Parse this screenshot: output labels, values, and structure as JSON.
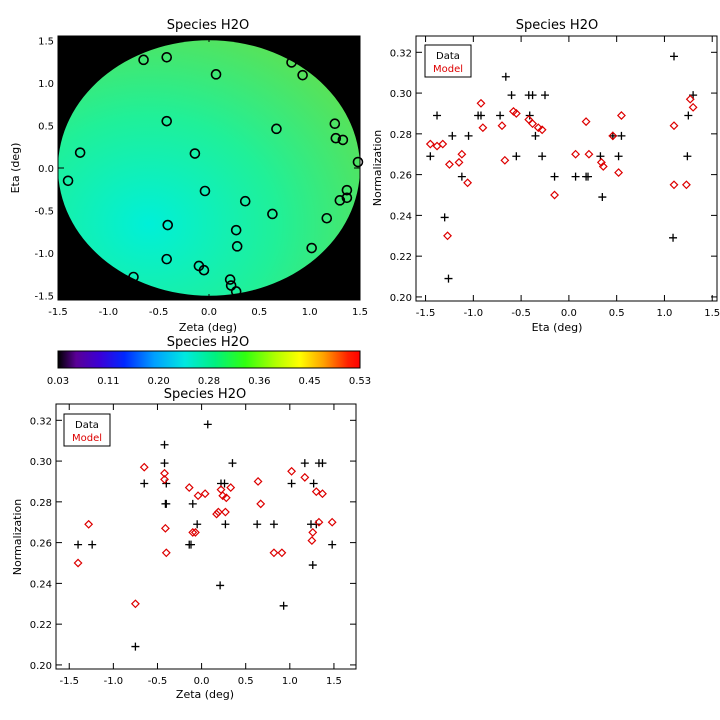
{
  "colors": {
    "background": "#ffffff",
    "outside_field": "#000000",
    "data_marker": "#000000",
    "model_marker": "#dd0000",
    "model_legend_text": "#dd0000"
  },
  "colorbar": {
    "title": "Species H2O",
    "min": 0.03,
    "max": 0.53,
    "ticks": [
      "0.03",
      "0.11",
      "0.20",
      "0.28",
      "0.36",
      "0.45",
      "0.53"
    ],
    "colormap": "rainbow"
  },
  "chart_data": [
    {
      "id": "map",
      "type": "heatmap",
      "title": "Species H2O",
      "xlabel": "Zeta (deg)",
      "ylabel": "Eta (deg)",
      "xlim": [
        -1.5,
        1.5
      ],
      "ylim": [
        -1.55,
        1.55
      ],
      "xticks": [
        "-1.5",
        "-1.0",
        "-0.5",
        "0.0",
        "0.5",
        "1.0",
        "1.5"
      ],
      "xtick_values": [
        -1.5,
        -1.0,
        -0.5,
        0.0,
        0.5,
        1.0,
        1.5
      ],
      "yticks": [
        "-1.5",
        "-1.0",
        "-0.5",
        "0.0",
        "0.5",
        "1.0",
        "1.5"
      ],
      "ytick_values": [
        -1.5,
        -1.0,
        -0.5,
        0.0,
        0.5,
        1.0,
        1.5
      ],
      "field_radius_deg": 1.5,
      "field_value_range": [
        0.26,
        0.3
      ],
      "points": [
        {
          "x": -1.4,
          "y": -0.15
        },
        {
          "x": -1.28,
          "y": 0.18
        },
        {
          "x": -0.65,
          "y": 1.27
        },
        {
          "x": -0.42,
          "y": 1.3
        },
        {
          "x": 0.07,
          "y": 1.1
        },
        {
          "x": 0.82,
          "y": 1.24
        },
        {
          "x": 0.93,
          "y": 1.09
        },
        {
          "x": -0.42,
          "y": 0.55
        },
        {
          "x": 0.67,
          "y": 0.46
        },
        {
          "x": 1.25,
          "y": 0.52
        },
        {
          "x": 1.26,
          "y": 0.35
        },
        {
          "x": 1.33,
          "y": 0.33
        },
        {
          "x": 1.48,
          "y": 0.07
        },
        {
          "x": -0.14,
          "y": 0.17
        },
        {
          "x": -0.04,
          "y": -0.27
        },
        {
          "x": 0.36,
          "y": -0.39
        },
        {
          "x": 1.37,
          "y": -0.26
        },
        {
          "x": 1.3,
          "y": -0.38
        },
        {
          "x": 1.37,
          "y": -0.35
        },
        {
          "x": 0.63,
          "y": -0.54
        },
        {
          "x": 1.17,
          "y": -0.59
        },
        {
          "x": -0.41,
          "y": -0.67
        },
        {
          "x": 0.27,
          "y": -0.73
        },
        {
          "x": 0.28,
          "y": -0.92
        },
        {
          "x": 1.02,
          "y": -0.94
        },
        {
          "x": -0.42,
          "y": -1.07
        },
        {
          "x": -0.1,
          "y": -1.15
        },
        {
          "x": -0.05,
          "y": -1.2
        },
        {
          "x": 0.21,
          "y": -1.31
        },
        {
          "x": 0.22,
          "y": -1.38
        },
        {
          "x": -0.75,
          "y": -1.28
        },
        {
          "x": 0.27,
          "y": -1.45
        }
      ]
    },
    {
      "id": "eta",
      "type": "scatter",
      "title": "Species H2O",
      "xlabel": "Eta (deg)",
      "ylabel": "Normalization",
      "xlim": [
        -1.6,
        1.55
      ],
      "ylim": [
        0.198,
        0.328
      ],
      "xticks": [
        "-1.5",
        "-1.0",
        "-0.5",
        "0.0",
        "0.5",
        "1.0",
        "1.5"
      ],
      "xtick_values": [
        -1.5,
        -1.0,
        -0.5,
        0.0,
        0.5,
        1.0,
        1.5
      ],
      "yticks": [
        "0.20",
        "0.22",
        "0.24",
        "0.26",
        "0.28",
        "0.30",
        "0.32"
      ],
      "ytick_values": [
        0.2,
        0.22,
        0.24,
        0.26,
        0.28,
        0.3,
        0.32
      ],
      "legend": {
        "position": "top-left",
        "entries": [
          "Data",
          "Model"
        ]
      },
      "series": [
        {
          "name": "Data",
          "marker": "plus",
          "points": [
            {
              "x": -1.45,
              "y": 0.269
            },
            {
              "x": -1.38,
              "y": 0.289
            },
            {
              "x": -1.3,
              "y": 0.239
            },
            {
              "x": -1.26,
              "y": 0.209
            },
            {
              "x": -1.22,
              "y": 0.279
            },
            {
              "x": -1.12,
              "y": 0.259
            },
            {
              "x": -1.05,
              "y": 0.279
            },
            {
              "x": -0.95,
              "y": 0.289
            },
            {
              "x": -0.92,
              "y": 0.289
            },
            {
              "x": -0.72,
              "y": 0.289
            },
            {
              "x": -0.66,
              "y": 0.308
            },
            {
              "x": -0.6,
              "y": 0.299
            },
            {
              "x": -0.55,
              "y": 0.269
            },
            {
              "x": -0.42,
              "y": 0.299
            },
            {
              "x": -0.41,
              "y": 0.289
            },
            {
              "x": -0.38,
              "y": 0.299
            },
            {
              "x": -0.35,
              "y": 0.279
            },
            {
              "x": -0.28,
              "y": 0.269
            },
            {
              "x": -0.25,
              "y": 0.299
            },
            {
              "x": -0.15,
              "y": 0.259
            },
            {
              "x": 0.07,
              "y": 0.259
            },
            {
              "x": 0.18,
              "y": 0.259
            },
            {
              "x": 0.2,
              "y": 0.259
            },
            {
              "x": 0.33,
              "y": 0.269
            },
            {
              "x": 0.35,
              "y": 0.249
            },
            {
              "x": 0.46,
              "y": 0.279
            },
            {
              "x": 0.52,
              "y": 0.269
            },
            {
              "x": 0.55,
              "y": 0.279
            },
            {
              "x": 1.09,
              "y": 0.229
            },
            {
              "x": 1.1,
              "y": 0.318
            },
            {
              "x": 1.24,
              "y": 0.269
            },
            {
              "x": 1.25,
              "y": 0.289
            },
            {
              "x": 1.3,
              "y": 0.299
            }
          ]
        },
        {
          "name": "Model",
          "marker": "diamond",
          "points": [
            {
              "x": -1.45,
              "y": 0.275
            },
            {
              "x": -1.38,
              "y": 0.274
            },
            {
              "x": -1.32,
              "y": 0.275
            },
            {
              "x": -1.27,
              "y": 0.23
            },
            {
              "x": -1.25,
              "y": 0.265
            },
            {
              "x": -1.15,
              "y": 0.266
            },
            {
              "x": -1.12,
              "y": 0.27
            },
            {
              "x": -1.06,
              "y": 0.256
            },
            {
              "x": -0.92,
              "y": 0.295
            },
            {
              "x": -0.9,
              "y": 0.283
            },
            {
              "x": -0.7,
              "y": 0.284
            },
            {
              "x": -0.67,
              "y": 0.267
            },
            {
              "x": -0.58,
              "y": 0.291
            },
            {
              "x": -0.55,
              "y": 0.29
            },
            {
              "x": -0.42,
              "y": 0.287
            },
            {
              "x": -0.38,
              "y": 0.285
            },
            {
              "x": -0.32,
              "y": 0.283
            },
            {
              "x": -0.28,
              "y": 0.282
            },
            {
              "x": -0.15,
              "y": 0.25
            },
            {
              "x": 0.07,
              "y": 0.27
            },
            {
              "x": 0.18,
              "y": 0.286
            },
            {
              "x": 0.21,
              "y": 0.27
            },
            {
              "x": 0.34,
              "y": 0.266
            },
            {
              "x": 0.36,
              "y": 0.264
            },
            {
              "x": 0.46,
              "y": 0.279
            },
            {
              "x": 0.52,
              "y": 0.261
            },
            {
              "x": 0.55,
              "y": 0.289
            },
            {
              "x": 1.1,
              "y": 0.255
            },
            {
              "x": 1.1,
              "y": 0.284
            },
            {
              "x": 1.23,
              "y": 0.255
            },
            {
              "x": 1.27,
              "y": 0.297
            },
            {
              "x": 1.3,
              "y": 0.293
            }
          ]
        }
      ]
    },
    {
      "id": "zeta",
      "type": "scatter",
      "title": "Species H2O",
      "xlabel": "Zeta (deg)",
      "ylabel": "Normalization",
      "xlim": [
        -1.65,
        1.75
      ],
      "ylim": [
        0.198,
        0.328
      ],
      "xticks": [
        "-1.5",
        "-1.0",
        "-0.5",
        "0.0",
        "0.5",
        "1.0",
        "1.5"
      ],
      "xtick_values": [
        -1.5,
        -1.0,
        -0.5,
        0.0,
        0.5,
        1.0,
        1.5
      ],
      "yticks": [
        "0.20",
        "0.22",
        "0.24",
        "0.26",
        "0.28",
        "0.30",
        "0.32"
      ],
      "ytick_values": [
        0.2,
        0.22,
        0.24,
        0.26,
        0.28,
        0.3,
        0.32
      ],
      "legend": {
        "position": "top-left",
        "entries": [
          "Data",
          "Model"
        ]
      },
      "series": [
        {
          "name": "Data",
          "marker": "plus",
          "points": [
            {
              "x": -1.4,
              "y": 0.259
            },
            {
              "x": -1.24,
              "y": 0.259
            },
            {
              "x": -0.75,
              "y": 0.209
            },
            {
              "x": -0.65,
              "y": 0.289
            },
            {
              "x": -0.42,
              "y": 0.308
            },
            {
              "x": -0.42,
              "y": 0.299
            },
            {
              "x": -0.41,
              "y": 0.279
            },
            {
              "x": -0.4,
              "y": 0.289
            },
            {
              "x": -0.4,
              "y": 0.279
            },
            {
              "x": -0.14,
              "y": 0.259
            },
            {
              "x": -0.12,
              "y": 0.259
            },
            {
              "x": -0.05,
              "y": 0.269
            },
            {
              "x": 0.07,
              "y": 0.318
            },
            {
              "x": 0.21,
              "y": 0.239
            },
            {
              "x": 0.22,
              "y": 0.289
            },
            {
              "x": 0.26,
              "y": 0.289
            },
            {
              "x": 0.27,
              "y": 0.269
            },
            {
              "x": 0.35,
              "y": 0.299
            },
            {
              "x": 0.63,
              "y": 0.269
            },
            {
              "x": 0.82,
              "y": 0.269
            },
            {
              "x": 0.93,
              "y": 0.229
            },
            {
              "x": 1.02,
              "y": 0.289
            },
            {
              "x": 1.17,
              "y": 0.299
            },
            {
              "x": 1.24,
              "y": 0.269
            },
            {
              "x": 1.26,
              "y": 0.249
            },
            {
              "x": 1.27,
              "y": 0.289
            },
            {
              "x": 1.3,
              "y": 0.269
            },
            {
              "x": 1.33,
              "y": 0.299
            },
            {
              "x": 1.37,
              "y": 0.299
            },
            {
              "x": 1.48,
              "y": 0.259
            },
            {
              "x": -0.1,
              "y": 0.279
            }
          ]
        },
        {
          "name": "Model",
          "marker": "diamond",
          "points": [
            {
              "x": -1.4,
              "y": 0.25
            },
            {
              "x": -1.28,
              "y": 0.269
            },
            {
              "x": -0.75,
              "y": 0.23
            },
            {
              "x": -0.65,
              "y": 0.297
            },
            {
              "x": -0.42,
              "y": 0.294
            },
            {
              "x": -0.42,
              "y": 0.291
            },
            {
              "x": -0.41,
              "y": 0.267
            },
            {
              "x": -0.4,
              "y": 0.255
            },
            {
              "x": -0.14,
              "y": 0.287
            },
            {
              "x": -0.1,
              "y": 0.265
            },
            {
              "x": -0.07,
              "y": 0.265
            },
            {
              "x": -0.04,
              "y": 0.283
            },
            {
              "x": 0.04,
              "y": 0.284
            },
            {
              "x": 0.17,
              "y": 0.274
            },
            {
              "x": 0.19,
              "y": 0.275
            },
            {
              "x": 0.22,
              "y": 0.286
            },
            {
              "x": 0.24,
              "y": 0.283
            },
            {
              "x": 0.27,
              "y": 0.275
            },
            {
              "x": 0.28,
              "y": 0.282
            },
            {
              "x": 0.33,
              "y": 0.287
            },
            {
              "x": 0.64,
              "y": 0.29
            },
            {
              "x": 0.67,
              "y": 0.279
            },
            {
              "x": 0.82,
              "y": 0.255
            },
            {
              "x": 0.91,
              "y": 0.255
            },
            {
              "x": 1.02,
              "y": 0.295
            },
            {
              "x": 1.17,
              "y": 0.292
            },
            {
              "x": 1.25,
              "y": 0.261
            },
            {
              "x": 1.26,
              "y": 0.265
            },
            {
              "x": 1.3,
              "y": 0.285
            },
            {
              "x": 1.33,
              "y": 0.27
            },
            {
              "x": 1.37,
              "y": 0.284
            },
            {
              "x": 1.48,
              "y": 0.27
            }
          ]
        }
      ]
    }
  ]
}
